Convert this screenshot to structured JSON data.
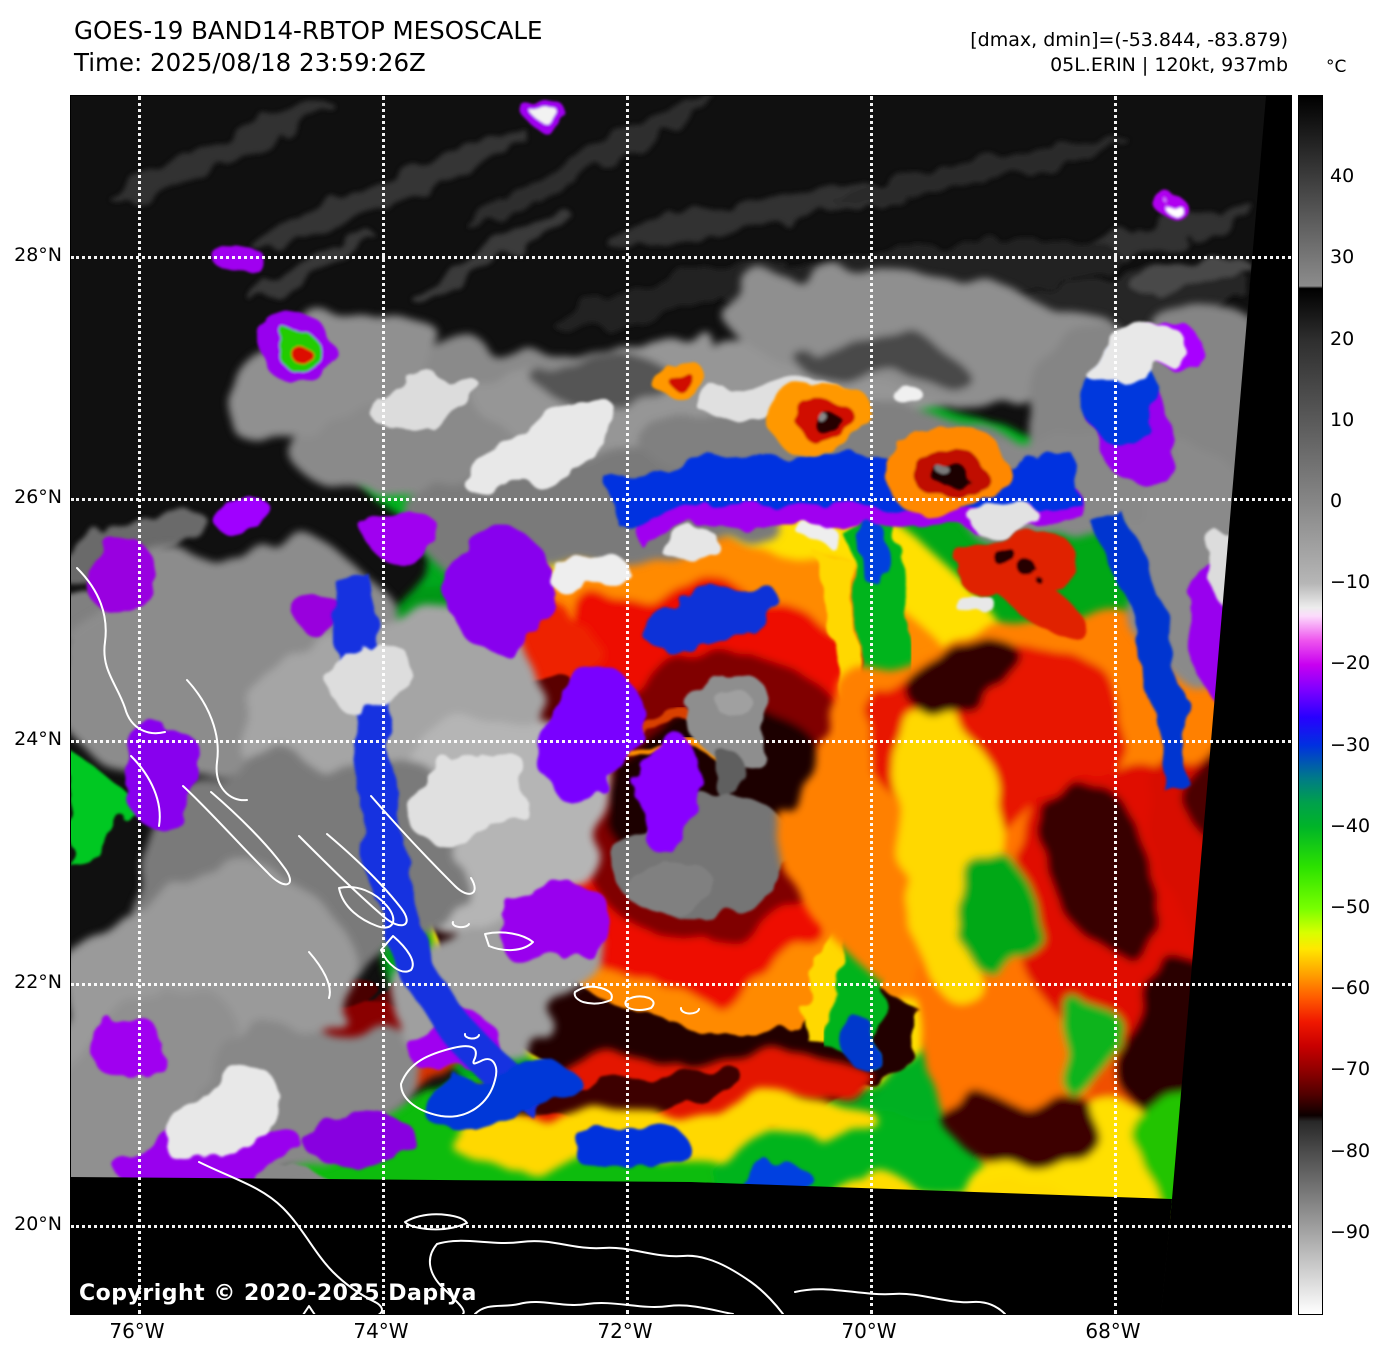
{
  "header": {
    "title": "GOES-19 BAND14-RBTOP MESOSCALE",
    "time": "Time: 2025/08/18 23:59:26Z",
    "dmax_dmin": "[dmax, dmin]=(-53.844, -83.879)",
    "storm": "05L.ERIN | 120kt, 937mb"
  },
  "map": {
    "copyright": "Copyright © 2020-2025 Dapiya",
    "lat_gridlines": [
      {
        "label": "28°N",
        "pct": 13.14
      },
      {
        "label": "26°N",
        "pct": 33.0
      },
      {
        "label": "24°N",
        "pct": 52.87
      },
      {
        "label": "22°N",
        "pct": 72.82
      },
      {
        "label": "20°N",
        "pct": 92.69
      }
    ],
    "lon_gridlines": [
      {
        "label": "76°W",
        "pct": 5.49
      },
      {
        "label": "74°W",
        "pct": 25.49
      },
      {
        "label": "72°W",
        "pct": 45.49
      },
      {
        "label": "70°W",
        "pct": 65.49
      },
      {
        "label": "68°W",
        "pct": 85.49
      }
    ]
  },
  "colorbar": {
    "unit": "°C",
    "vmax": 50,
    "vmin": -100,
    "ticks": [
      {
        "label": "40",
        "pct": 6.67
      },
      {
        "label": "30",
        "pct": 13.33
      },
      {
        "label": "20",
        "pct": 20.0
      },
      {
        "label": "10",
        "pct": 26.67
      },
      {
        "label": "0",
        "pct": 33.33
      },
      {
        "label": "−10",
        "pct": 40.0
      },
      {
        "label": "−20",
        "pct": 46.67
      },
      {
        "label": "−30",
        "pct": 53.33
      },
      {
        "label": "−40",
        "pct": 60.0
      },
      {
        "label": "−50",
        "pct": 66.67
      },
      {
        "label": "−60",
        "pct": 73.33
      },
      {
        "label": "−70",
        "pct": 80.0
      },
      {
        "label": "−80",
        "pct": 86.67
      },
      {
        "label": "−90",
        "pct": 93.33
      }
    ],
    "gradient_stops": [
      {
        "pct": 0,
        "color": "#000000"
      },
      {
        "pct": 15.6,
        "color": "#8c8c8c"
      },
      {
        "pct": 15.8,
        "color": "#000000"
      },
      {
        "pct": 20,
        "color": "#2e2e2e"
      },
      {
        "pct": 26.7,
        "color": "#5a5a5a"
      },
      {
        "pct": 33.3,
        "color": "#868686"
      },
      {
        "pct": 40,
        "color": "#b6b6b6"
      },
      {
        "pct": 42,
        "color": "#ededed"
      },
      {
        "pct": 42.7,
        "color": "#fcdafc"
      },
      {
        "pct": 44.7,
        "color": "#ee55ee"
      },
      {
        "pct": 46.7,
        "color": "#c800f0"
      },
      {
        "pct": 48.7,
        "color": "#8000ff"
      },
      {
        "pct": 51,
        "color": "#2800ff"
      },
      {
        "pct": 53.3,
        "color": "#0030e0"
      },
      {
        "pct": 56,
        "color": "#007a88"
      },
      {
        "pct": 58,
        "color": "#00a04c"
      },
      {
        "pct": 60,
        "color": "#00b428"
      },
      {
        "pct": 63.3,
        "color": "#2ce200"
      },
      {
        "pct": 66.7,
        "color": "#78ff00"
      },
      {
        "pct": 68.7,
        "color": "#d8ff00"
      },
      {
        "pct": 70,
        "color": "#ffe800"
      },
      {
        "pct": 72,
        "color": "#ffa400"
      },
      {
        "pct": 74,
        "color": "#ff5c00"
      },
      {
        "pct": 76,
        "color": "#f01800"
      },
      {
        "pct": 78,
        "color": "#c80000"
      },
      {
        "pct": 80,
        "color": "#900000"
      },
      {
        "pct": 82,
        "color": "#500000"
      },
      {
        "pct": 83.7,
        "color": "#0c0000"
      },
      {
        "pct": 84.2,
        "color": "#282828"
      },
      {
        "pct": 86.7,
        "color": "#4c4c4c"
      },
      {
        "pct": 93.3,
        "color": "#a4a4a4"
      },
      {
        "pct": 100,
        "color": "#ffffff"
      }
    ]
  }
}
